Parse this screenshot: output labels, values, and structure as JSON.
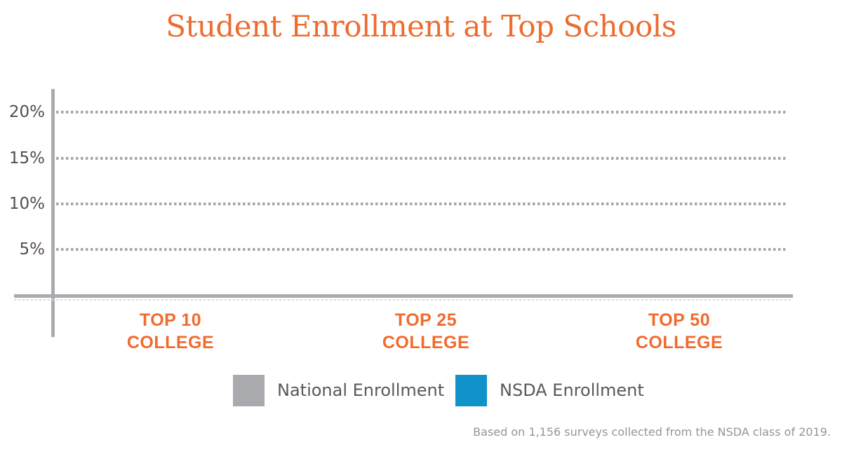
{
  "title": "Student Enrollment at Top Schools",
  "y_axis": {
    "ticks": [
      {
        "label": "20%"
      },
      {
        "label": "15%"
      },
      {
        "label": "10%"
      },
      {
        "label": "5%"
      }
    ]
  },
  "x_axis": {
    "categories": [
      {
        "line1": "TOP 10",
        "line2": "COLLEGE"
      },
      {
        "line1": "TOP 25",
        "line2": "COLLEGE"
      },
      {
        "line1": "TOP 50",
        "line2": "COLLEGE"
      }
    ]
  },
  "legend": {
    "items": [
      {
        "label": "National Enrollment",
        "color": "#A8AAAD"
      },
      {
        "label": "NSDA Enrollment",
        "color": "#1192C8"
      }
    ]
  },
  "footer": {
    "note": "Based on 1,156 surveys collected from the NSDA class of 2019."
  },
  "colors": {
    "title_orange": "#ED6C30",
    "category_orange": "#F26A2D",
    "axis_gray": "#A9ABAE",
    "gridline_gray": "#A5A7AA",
    "y_label_gray": "#564E4A",
    "legend_text_gray": "#58595B",
    "footnote_gray": "#939598",
    "national_gray": "#A8AAAD",
    "nsda_blue": "#1192C8"
  },
  "chart_data": {
    "type": "bar",
    "title": "Student Enrollment at Top Schools",
    "categories": [
      "TOP 10 COLLEGE",
      "TOP 25 COLLEGE",
      "TOP 50 COLLEGE"
    ],
    "series": [
      {
        "name": "National Enrollment",
        "color": "#A8AAAD",
        "values": [
          null,
          null,
          null
        ]
      },
      {
        "name": "NSDA Enrollment",
        "color": "#1192C8",
        "values": [
          null,
          null,
          null
        ]
      }
    ],
    "bars_rendered": false,
    "xlabel": "",
    "ylabel": "",
    "ylim": [
      0,
      22.5
    ],
    "y_ticks": [
      "5%",
      "10%",
      "15%",
      "20%"
    ],
    "grid": "horizontal-dotted",
    "legend_position": "bottom",
    "caption": "Based on 1,156 surveys collected from the NSDA class of 2019."
  }
}
